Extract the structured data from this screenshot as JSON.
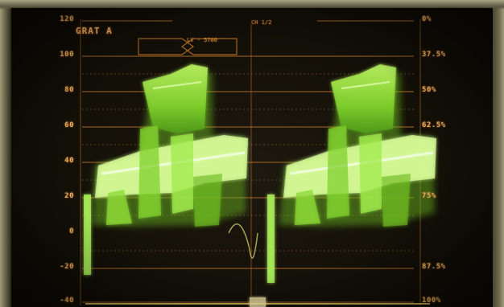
{
  "graticule": {
    "title": "GRAT A"
  },
  "scale_left": [
    "120",
    "100",
    "80",
    "60",
    "40",
    "20",
    "0",
    "-20",
    "-40"
  ],
  "scale_right": [
    "0%",
    "37.5%",
    "50%",
    "62.5%",
    "75%",
    "87.5%",
    "100%"
  ],
  "readouts": {
    "top_center": "CH 1/2",
    "box_label": "LV - 5700"
  },
  "colors": {
    "trace": "#9ee84a",
    "trace_bright": "#e8ffb0",
    "graticule": "#e08a2a",
    "labels": "#e0b060"
  }
}
